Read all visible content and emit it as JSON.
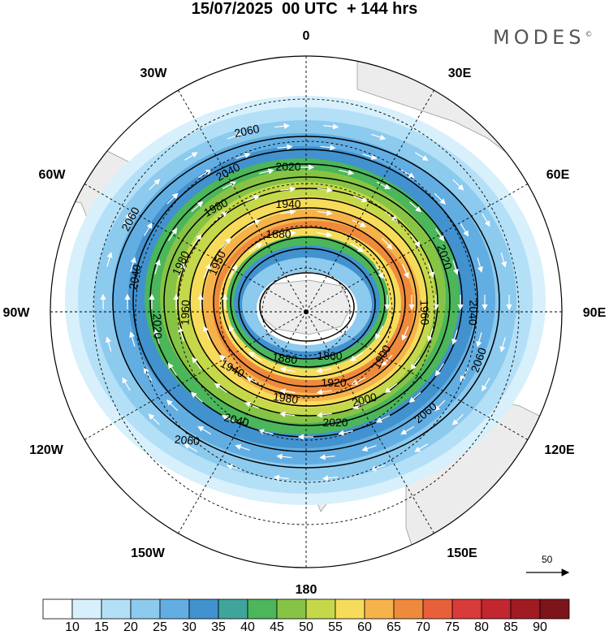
{
  "title": "15/07/2025  00 UTC  + 144 hrs",
  "logo": "MODES",
  "logo_mark": "©",
  "longitude_labels": {
    "top": "0",
    "bottom": "180",
    "left": "90W",
    "right": "90E",
    "w30": "30W",
    "e30": "30E",
    "w60": "60W",
    "e60": "60E",
    "w120": "120W",
    "e120": "120E",
    "w150": "150W",
    "e150": "150E"
  },
  "contour_labels": [
    "2060",
    "2040",
    "2020",
    "1980",
    "1940",
    "1880",
    "1950",
    "1980",
    "2060",
    "2040",
    "1960",
    "2020",
    "2020",
    "1960",
    "2040",
    "1880",
    "1860",
    "1900",
    "1920",
    "1940",
    "1980",
    "2000",
    "2020",
    "2040",
    "2060",
    "2060",
    "2060"
  ],
  "vector_reference": "50",
  "colorbar": {
    "ticks": [
      "10",
      "15",
      "20",
      "25",
      "30",
      "35",
      "40",
      "45",
      "50",
      "55",
      "60",
      "65",
      "70",
      "75",
      "80",
      "85",
      "90"
    ],
    "colors": [
      "#ffffff",
      "#d7f0fb",
      "#b3e0f7",
      "#8ccaee",
      "#62aee2",
      "#4192cf",
      "#3fa59a",
      "#4bb65a",
      "#87c445",
      "#c4d84a",
      "#f6dc5a",
      "#f5b34a",
      "#ef8a3c",
      "#e8603a",
      "#d93a3a",
      "#c2262f",
      "#a01b22",
      "#7e141b"
    ]
  }
}
